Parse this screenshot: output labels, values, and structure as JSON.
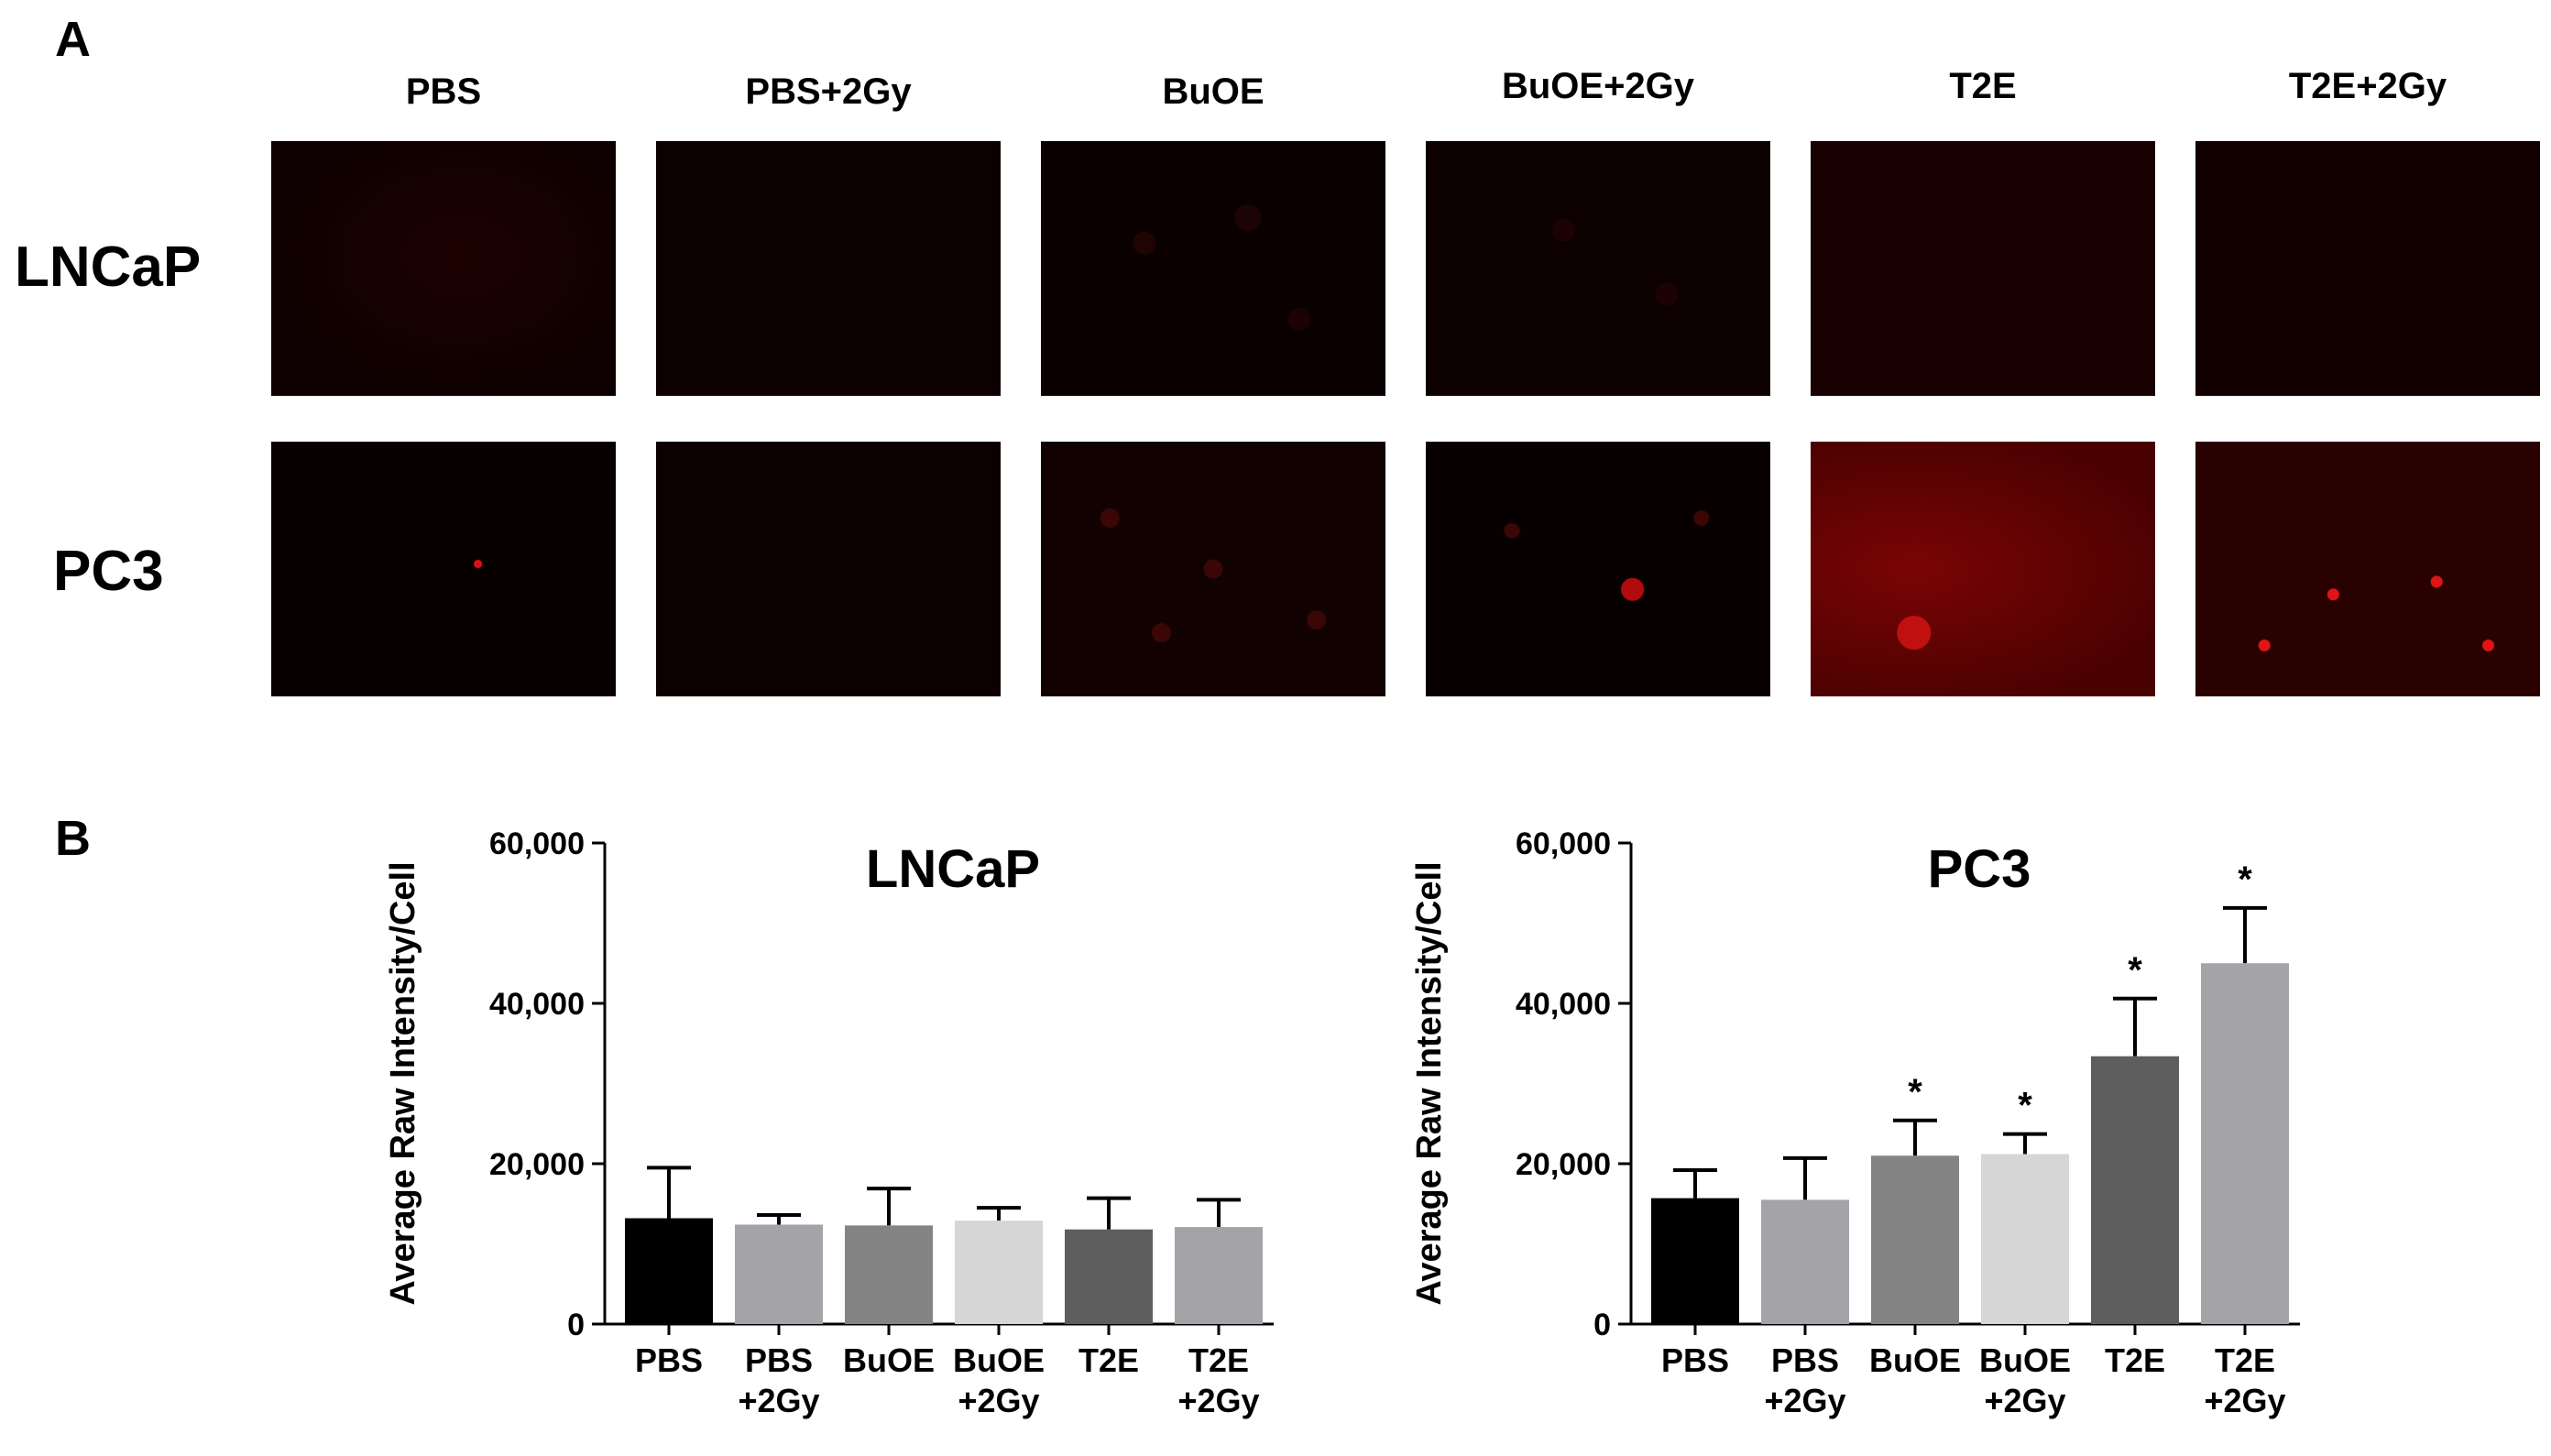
{
  "panels": {
    "a_label": "A",
    "b_label": "B"
  },
  "micrographs": {
    "columns": [
      "PBS",
      "PBS+2Gy",
      "BuOE",
      "BuOE+2Gy",
      "T2E",
      "T2E+2Gy"
    ],
    "rows": [
      "LNCaP",
      "PC3"
    ]
  },
  "chart_data": [
    {
      "type": "bar",
      "title": "LNCaP",
      "ylabel": "Average Raw Intensity/Cell",
      "ylim": [
        0,
        60000
      ],
      "yticks": [
        "0",
        "20,000",
        "40,000",
        "60,000"
      ],
      "categories": [
        [
          "PBS"
        ],
        [
          "PBS",
          "+2Gy"
        ],
        [
          "BuOE"
        ],
        [
          "BuOE",
          "+2Gy"
        ],
        [
          "T2E"
        ],
        [
          "T2E",
          "+2Gy"
        ]
      ],
      "values": [
        13200,
        12400,
        12300,
        12900,
        11800,
        12100
      ],
      "errors": [
        6300,
        1200,
        4600,
        1600,
        3900,
        3400
      ],
      "significance": [
        "",
        "",
        "",
        "",
        "",
        ""
      ],
      "colors": [
        "#000000",
        "#a4a4a8",
        "#848484",
        "#d6d6d6",
        "#5e5e5e",
        "#a4a4a8"
      ]
    },
    {
      "type": "bar",
      "title": "PC3",
      "ylabel": "Average Raw Intensity/Cell",
      "ylim": [
        0,
        60000
      ],
      "yticks": [
        "0",
        "20,000",
        "40,000",
        "60,000"
      ],
      "categories": [
        [
          "PBS"
        ],
        [
          "PBS",
          "+2Gy"
        ],
        [
          "BuOE"
        ],
        [
          "BuOE",
          "+2Gy"
        ],
        [
          "T2E"
        ],
        [
          "T2E",
          "+2Gy"
        ]
      ],
      "values": [
        15700,
        15500,
        21000,
        21200,
        33400,
        45000
      ],
      "errors": [
        3500,
        5200,
        4400,
        2500,
        7200,
        6900
      ],
      "significance": [
        "",
        "",
        "*",
        "*",
        "*",
        "*"
      ],
      "colors": [
        "#000000",
        "#a4a4a8",
        "#848484",
        "#d6d6d6",
        "#5e5e5e",
        "#a4a4a8"
      ]
    }
  ]
}
